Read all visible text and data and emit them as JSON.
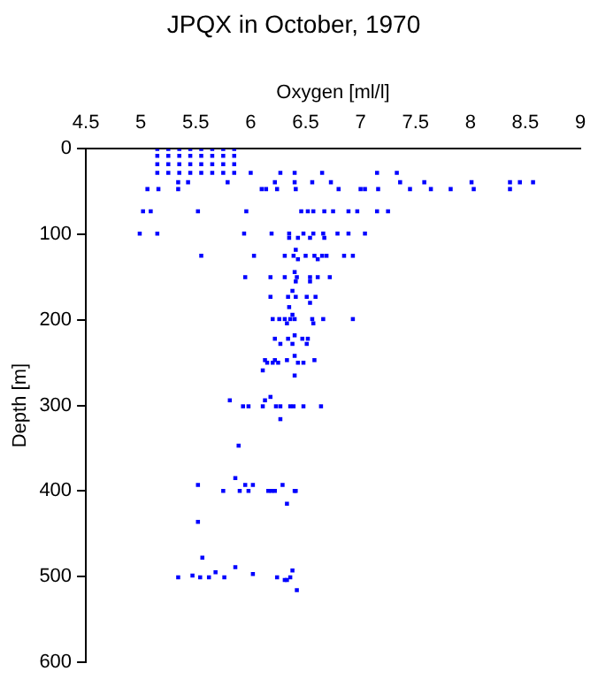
{
  "chart_data": {
    "type": "scatter",
    "title": "JPQX in October, 1970",
    "xlabel": "Oxygen [ml/l]",
    "ylabel": "Depth [m]",
    "xlim": [
      4.5,
      9
    ],
    "xticks": [
      4.5,
      5,
      5.5,
      6,
      6.5,
      7,
      7.5,
      8,
      8.5,
      9
    ],
    "ylim": [
      600,
      0
    ],
    "yticks": [
      0,
      100,
      200,
      300,
      400,
      500,
      600
    ],
    "grid": false,
    "legend": false,
    "marker": "square",
    "series": [
      {
        "color": "#0000ff",
        "x": [
          5.15,
          5.25,
          5.35,
          5.45,
          5.55,
          5.65,
          5.75,
          5.85,
          5.15,
          5.25,
          5.35,
          5.45,
          5.55,
          5.65,
          5.75,
          5.85,
          5.15,
          5.25,
          5.35,
          5.45,
          5.55,
          5.65,
          5.75,
          5.85,
          5.15,
          5.25,
          5.35,
          5.45,
          5.55,
          5.65,
          5.75,
          5.85,
          6.0,
          6.27,
          6.4,
          6.65,
          7.15,
          7.33,
          5.34,
          5.43,
          5.79,
          6.22,
          6.4,
          6.56,
          6.73,
          7.36,
          7.58,
          8.01,
          8.36,
          8.45,
          8.57,
          5.06,
          5.16,
          5.34,
          6.1,
          6.14,
          6.24,
          6.41,
          6.8,
          7.0,
          7.04,
          7.16,
          7.45,
          7.64,
          7.82,
          8.03,
          8.36,
          5.02,
          5.09,
          5.52,
          5.96,
          6.46,
          6.52,
          6.57,
          6.67,
          6.75,
          6.89,
          6.97,
          7.15,
          7.25,
          4.99,
          5.15,
          5.94,
          6.19,
          6.35,
          6.48,
          6.57,
          6.66,
          6.79,
          6.89,
          7.04,
          6.35,
          6.43,
          6.54,
          6.67,
          6.41,
          5.55,
          6.03,
          6.31,
          6.39,
          6.5,
          6.58,
          6.65,
          6.69,
          6.85,
          6.93,
          6.43,
          6.61,
          6.4,
          5.95,
          6.18,
          6.31,
          6.42,
          6.54,
          6.61,
          6.72,
          6.41,
          6.54,
          6.38,
          6.18,
          6.34,
          6.41,
          6.51,
          6.59,
          6.54,
          6.35,
          6.38,
          6.2,
          6.26,
          6.31,
          6.36,
          6.4,
          6.56,
          6.66,
          6.93,
          6.33,
          6.57,
          6.4,
          6.22,
          6.34,
          6.47,
          6.52,
          6.27,
          6.38,
          6.51,
          6.4,
          6.13,
          6.22,
          6.33,
          6.58,
          6.15,
          6.2,
          6.25,
          6.43,
          6.48,
          6.11,
          6.4,
          6.18,
          5.81,
          6.13,
          5.93,
          5.98,
          6.11,
          6.23,
          6.27,
          6.36,
          6.39,
          6.48,
          6.64,
          6.27,
          5.89,
          5.86,
          5.52,
          5.95,
          6.02,
          6.29,
          5.75,
          5.9,
          5.98,
          6.16,
          6.19,
          6.22,
          6.4,
          6.41,
          6.33,
          5.52,
          5.56,
          5.86,
          6.38,
          5.68,
          6.02,
          5.47,
          5.34,
          5.54,
          5.62,
          5.76,
          6.24,
          6.36,
          6.31,
          6.33,
          6.42
        ],
        "values": [
          0,
          0,
          0,
          0,
          0,
          0,
          0,
          0,
          8,
          8,
          8,
          8,
          8,
          8,
          8,
          8,
          18,
          18,
          18,
          18,
          18,
          18,
          18,
          18,
          28,
          28,
          28,
          28,
          28,
          28,
          28,
          28,
          28,
          28,
          28,
          28,
          28,
          28,
          39,
          39,
          39,
          39,
          39,
          39,
          39,
          39,
          39,
          39,
          39,
          39,
          39,
          47,
          47,
          47,
          47,
          47,
          47,
          47,
          47,
          47,
          47,
          47,
          47,
          47,
          47,
          47,
          47,
          73,
          73,
          73,
          73,
          73,
          73,
          73,
          73,
          73,
          73,
          73,
          73,
          73,
          99,
          99,
          99,
          99,
          99,
          99,
          99,
          99,
          99,
          99,
          99,
          104,
          104,
          104,
          104,
          118,
          125,
          125,
          125,
          125,
          125,
          125,
          125,
          125,
          125,
          125,
          129,
          129,
          144,
          150,
          150,
          150,
          150,
          150,
          150,
          150,
          155,
          155,
          166,
          173,
          173,
          173,
          173,
          173,
          180,
          185,
          194,
          199,
          199,
          199,
          199,
          199,
          199,
          199,
          199,
          204,
          204,
          218,
          222,
          222,
          222,
          222,
          228,
          228,
          228,
          242,
          247,
          247,
          247,
          247,
          250,
          250,
          250,
          250,
          250,
          259,
          265,
          290,
          294,
          294,
          301,
          301,
          301,
          301,
          301,
          301,
          301,
          301,
          301,
          316,
          347,
          385,
          393,
          393,
          393,
          393,
          400,
          400,
          400,
          400,
          400,
          400,
          400,
          400,
          415,
          436,
          478,
          489,
          493,
          495,
          497,
          499,
          501,
          501,
          501,
          501,
          501,
          501,
          504,
          504,
          516
        ]
      }
    ]
  }
}
